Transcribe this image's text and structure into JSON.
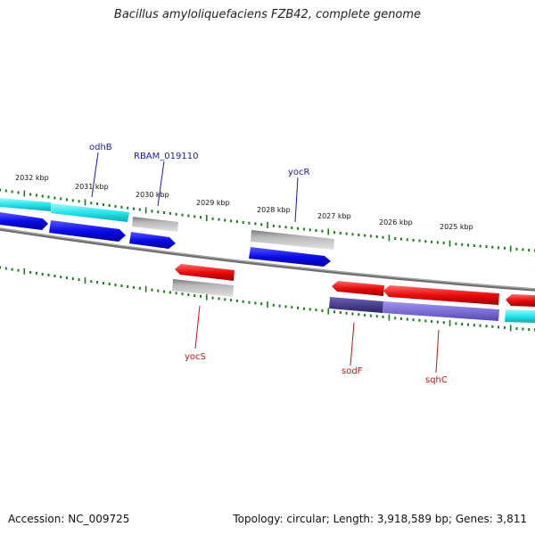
{
  "title": "Bacillus amyloliquefaciens FZB42, complete genome",
  "footer": {
    "accession": "Accession: NC_009725",
    "summary": "Topology: circular; Length: 3,918,589 bp; Genes: 3,811"
  },
  "ticks": [
    "2032 kbp",
    "2031 kbp",
    "2030 kbp",
    "2029 kbp",
    "2028 kbp",
    "2027 kbp",
    "2026 kbp",
    "2025 kbp"
  ],
  "gene_labels": {
    "forward": [
      "odhB",
      "RBAM_019110",
      "yocR"
    ],
    "reverse": [
      "yocS",
      "sodF",
      "sqhC"
    ]
  },
  "colors": {
    "cds_forward": "#0a0aee",
    "cds_reverse": "#ee0a0a",
    "cog_cyan": "#22e6ee",
    "cog_grey": "#b8b8b8",
    "cog_purple": "#7b6ed8",
    "cog_darkpurple": "#4a3f8e",
    "backbone": "#808080",
    "ticks": "#1a7a1a"
  }
}
